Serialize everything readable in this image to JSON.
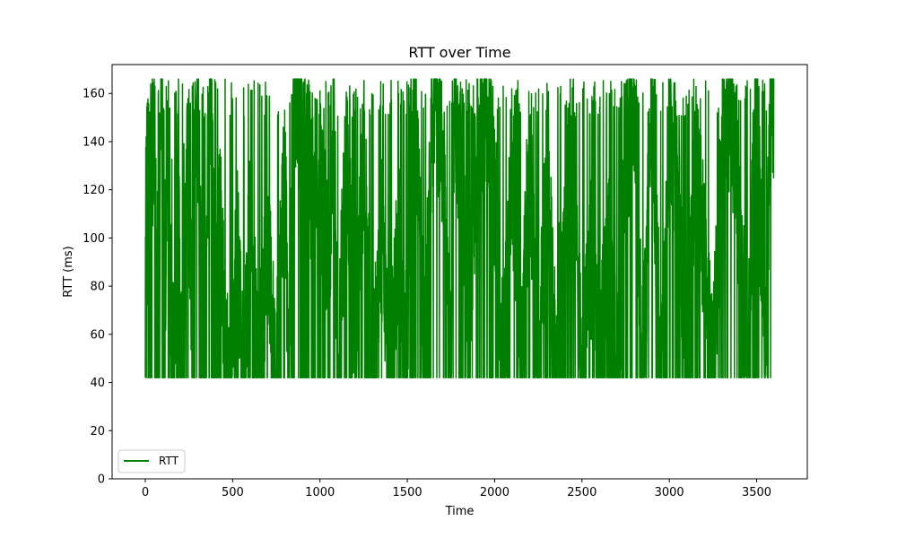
{
  "chart_data": {
    "type": "line",
    "title": "RTT over Time",
    "xlabel": "Time",
    "ylabel": "RTT (ms)",
    "xlim": [
      -190,
      3790
    ],
    "ylim": [
      0,
      172
    ],
    "x_ticks": [
      0,
      500,
      1000,
      1500,
      2000,
      2500,
      3000,
      3500
    ],
    "y_ticks": [
      0,
      20,
      40,
      60,
      80,
      100,
      120,
      140,
      160
    ],
    "grid": false,
    "legend_position": "lower-left",
    "colors": {
      "series": "#008000",
      "axes": "#000000",
      "background": "#ffffff"
    },
    "sampling": {
      "x_start": 0,
      "x_end": 3600,
      "points": 3601,
      "y_min": 42,
      "y_max": 166
    },
    "series": [
      {
        "name": "RTT",
        "anchors": [
          [
            0,
            46
          ],
          [
            5,
            160
          ],
          [
            10,
            93
          ],
          [
            15,
            125
          ],
          [
            20,
            140
          ],
          [
            30,
            133
          ],
          [
            40,
            141
          ],
          [
            60,
            125
          ],
          [
            80,
            60
          ],
          [
            90,
            160
          ],
          [
            100,
            145
          ],
          [
            120,
            81
          ],
          [
            130,
            163
          ],
          [
            140,
            42
          ],
          [
            150,
            133
          ],
          [
            160,
            42
          ],
          [
            180,
            67
          ],
          [
            190,
            143
          ],
          [
            200,
            42
          ],
          [
            220,
            104
          ],
          [
            240,
            132
          ],
          [
            260,
            80
          ],
          [
            280,
            140
          ],
          [
            300,
            150
          ],
          [
            330,
            42
          ],
          [
            350,
            100
          ],
          [
            370,
            158
          ],
          [
            380,
            163
          ],
          [
            400,
            81
          ],
          [
            420,
            130
          ],
          [
            440,
            92
          ],
          [
            460,
            42
          ],
          [
            480,
            47
          ],
          [
            500,
            42
          ],
          [
            520,
            104
          ],
          [
            540,
            80
          ],
          [
            560,
            42
          ],
          [
            600,
            104
          ],
          [
            650,
            42
          ],
          [
            700,
            98
          ],
          [
            750,
            42
          ],
          [
            800,
            130
          ],
          [
            820,
            42
          ],
          [
            850,
            166
          ],
          [
            870,
            160
          ],
          [
            900,
            140
          ],
          [
            950,
            120
          ],
          [
            1000,
            130
          ],
          [
            1050,
            80
          ],
          [
            1080,
            160
          ],
          [
            1100,
            42
          ],
          [
            1150,
            132
          ],
          [
            1200,
            67
          ],
          [
            1250,
            133
          ],
          [
            1300,
            42
          ],
          [
            1350,
            103
          ],
          [
            1400,
            42
          ],
          [
            1450,
            103
          ],
          [
            1500,
            42
          ],
          [
            1520,
            160
          ],
          [
            1550,
            140
          ],
          [
            1600,
            53
          ],
          [
            1650,
            160
          ],
          [
            1700,
            140
          ],
          [
            1750,
            42
          ],
          [
            1770,
            166
          ],
          [
            1800,
            130
          ],
          [
            1850,
            66
          ],
          [
            1900,
            140
          ],
          [
            1950,
            160
          ],
          [
            2000,
            120
          ],
          [
            2050,
            42
          ],
          [
            2100,
            134
          ],
          [
            2150,
            42
          ],
          [
            2200,
            140
          ],
          [
            2250,
            42
          ],
          [
            2300,
            130
          ],
          [
            2350,
            42
          ],
          [
            2400,
            120
          ],
          [
            2450,
            140
          ],
          [
            2500,
            42
          ],
          [
            2550,
            92
          ],
          [
            2600,
            42
          ],
          [
            2650,
            100
          ],
          [
            2700,
            42
          ],
          [
            2750,
            132
          ],
          [
            2800,
            160
          ],
          [
            2850,
            42
          ],
          [
            2900,
            160
          ],
          [
            2950,
            42
          ],
          [
            3000,
            150
          ],
          [
            3050,
            120
          ],
          [
            3100,
            42
          ],
          [
            3150,
            140
          ],
          [
            3200,
            92
          ],
          [
            3250,
            42
          ],
          [
            3300,
            132
          ],
          [
            3350,
            158
          ],
          [
            3400,
            110
          ],
          [
            3450,
            42
          ],
          [
            3500,
            163
          ],
          [
            3550,
            42
          ],
          [
            3580,
            160
          ],
          [
            3600,
            156
          ]
        ]
      }
    ]
  }
}
